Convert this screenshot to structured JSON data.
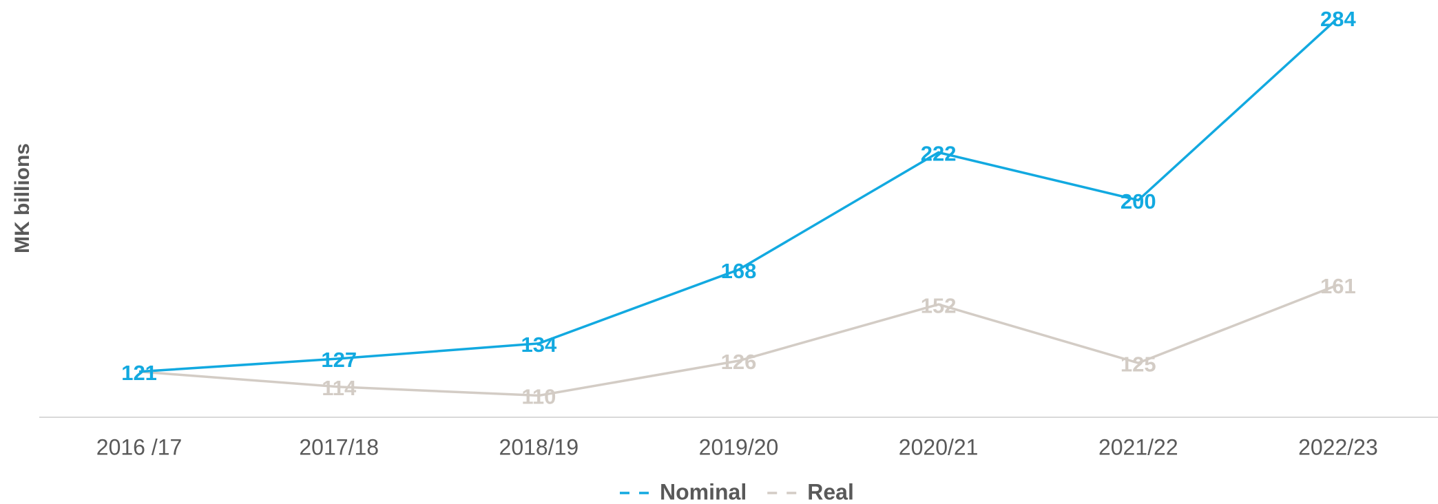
{
  "chart_data": {
    "type": "line",
    "y_label": "MK billions",
    "categories": [
      "2016 /17",
      "2017/18",
      "2018/19",
      "2019/20",
      "2020/21",
      "2021/22",
      "2022/23"
    ],
    "series": [
      {
        "name": "Nominal",
        "color": "#12a9e0",
        "values": [
          121,
          127,
          134,
          168,
          222,
          200,
          284
        ]
      },
      {
        "name": "Real",
        "color": "#d3ccc5",
        "values": [
          121,
          114,
          110,
          126,
          152,
          125,
          161
        ]
      }
    ],
    "ylim": [
      100,
      290
    ],
    "legend": "bottom"
  }
}
